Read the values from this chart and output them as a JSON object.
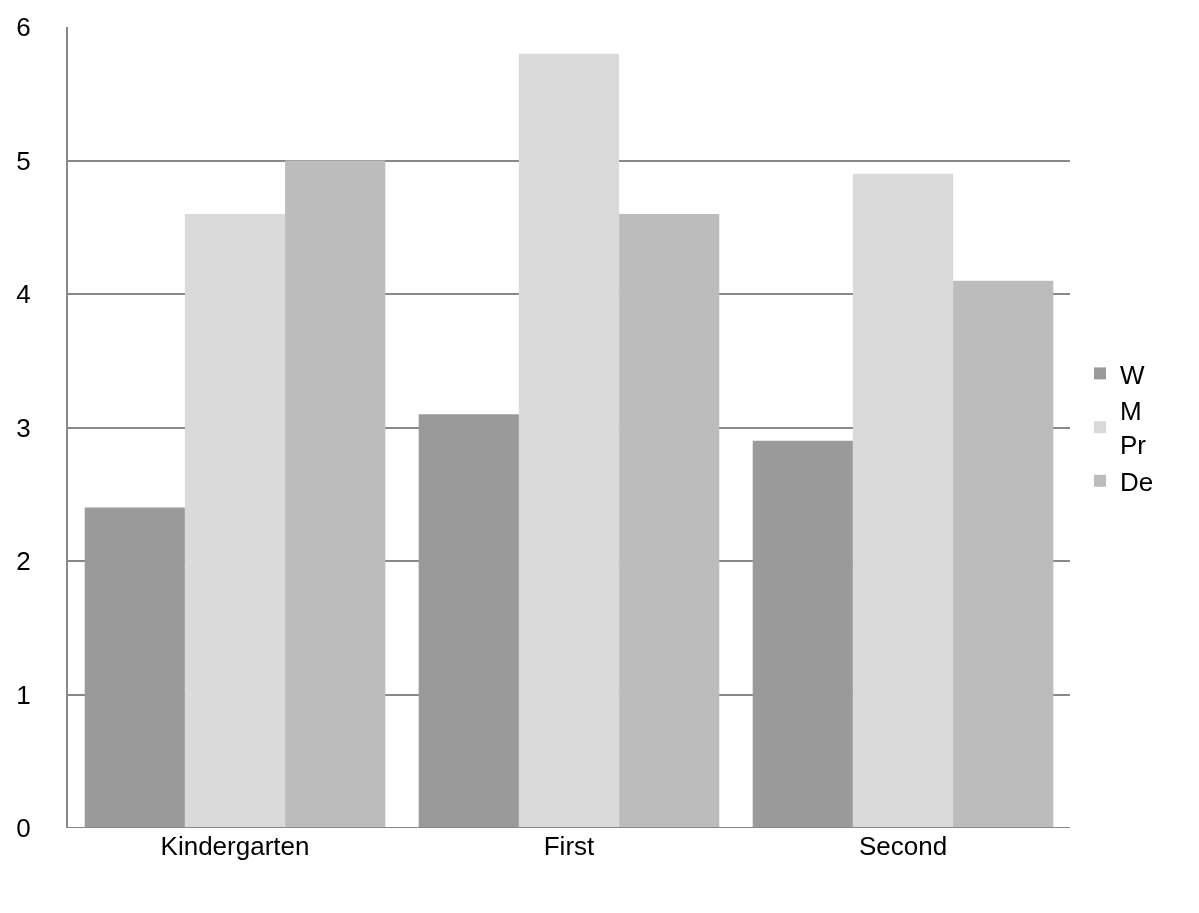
{
  "chart_data": {
    "type": "bar",
    "categories": [
      "Kindergarten",
      "First",
      "Second"
    ],
    "series": [
      {
        "name": "W",
        "color": "#9a9a9a",
        "values": [
          2.4,
          3.1,
          2.9
        ]
      },
      {
        "name": "M\nPr",
        "color": "#dadada",
        "values": [
          4.6,
          5.8,
          4.9
        ]
      },
      {
        "name": "De",
        "color": "#bcbcbc",
        "values": [
          5.0,
          4.6,
          4.1
        ]
      }
    ],
    "ylim": [
      0,
      6
    ],
    "yticks": [
      0,
      1,
      2,
      3,
      4,
      5,
      6
    ],
    "grid": "y",
    "legend": "right"
  }
}
